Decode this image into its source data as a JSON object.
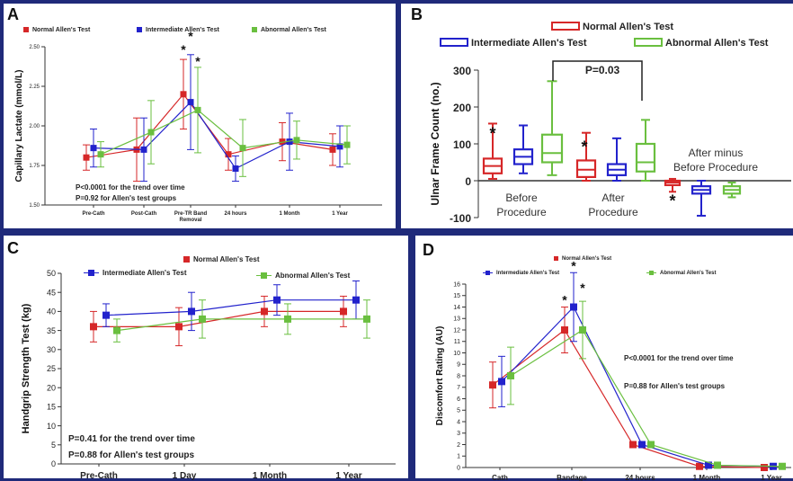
{
  "colors": {
    "normal": "#d62728",
    "intermediate": "#2222cc",
    "abnormal": "#6abf3f",
    "frame": "#1f2a7a"
  },
  "legend": {
    "normal": "Normal Allen's Test",
    "intermediate": "Intermediate Allen's Test",
    "abnormal": "Abnormal Allen's Test"
  },
  "chart_data": [
    {
      "panel": "A",
      "type": "line",
      "categories": [
        "Pre-Cath",
        "Post-Cath",
        "Pre-TR Band Removal",
        "24 hours",
        "1 Month",
        "1 Year"
      ],
      "ylabel": "Capillary Lactate (mmol/L)",
      "xlabel": "",
      "ylim": [
        1.5,
        2.5
      ],
      "yticks": [
        "1.50",
        "1.75",
        "2.00",
        "2.25",
        "2.50"
      ],
      "series": [
        {
          "name": "Normal Allen's Test",
          "values": [
            1.8,
            1.85,
            2.2,
            1.82,
            1.9,
            1.85
          ],
          "err": [
            0.08,
            0.2,
            0.22,
            0.1,
            0.12,
            0.1
          ]
        },
        {
          "name": "Intermediate Allen's Test",
          "values": [
            1.86,
            1.85,
            2.15,
            1.73,
            1.9,
            1.87
          ],
          "err": [
            0.12,
            0.2,
            0.3,
            0.08,
            0.18,
            0.13
          ]
        },
        {
          "name": "Abnormal Allen's Test",
          "values": [
            1.82,
            1.96,
            2.1,
            1.86,
            1.91,
            1.88
          ],
          "err": [
            0.08,
            0.2,
            0.27,
            0.18,
            0.12,
            0.12
          ]
        }
      ],
      "stars": [
        "*",
        "*",
        "*"
      ],
      "notes": [
        "P<0.0001 for the trend over time",
        "P=0.92 for Allen's test groups"
      ]
    },
    {
      "panel": "B",
      "type": "box",
      "ylabel": "Ulnar Frame Count (no.)",
      "ylim": [
        -100,
        300
      ],
      "yticks": [
        "-100",
        "0",
        "100",
        "200",
        "300"
      ],
      "group_labels": [
        "Before Procedure",
        "After Procedure",
        "After minus Before Procedure"
      ],
      "boxes": [
        {
          "series": "normal",
          "min": 5,
          "q1": 20,
          "med": 40,
          "q3": 60,
          "max": 155
        },
        {
          "series": "intermediate",
          "min": 20,
          "q1": 45,
          "med": 65,
          "q3": 85,
          "max": 150
        },
        {
          "series": "abnormal",
          "min": 15,
          "q1": 50,
          "med": 75,
          "q3": 125,
          "max": 270
        },
        {
          "series": "normal",
          "min": 0,
          "q1": 10,
          "med": 30,
          "q3": 55,
          "max": 130
        },
        {
          "series": "intermediate",
          "min": 0,
          "q1": 15,
          "med": 30,
          "q3": 45,
          "max": 115
        },
        {
          "series": "abnormal",
          "min": 0,
          "q1": 25,
          "med": 50,
          "q3": 100,
          "max": 165
        },
        {
          "series": "normal",
          "min": -30,
          "q1": -12,
          "med": -5,
          "q3": 0,
          "max": 5
        },
        {
          "series": "intermediate",
          "min": -95,
          "q1": -35,
          "med": -25,
          "q3": -15,
          "max": 0
        },
        {
          "series": "abnormal",
          "min": -45,
          "q1": -35,
          "med": -25,
          "q3": -15,
          "max": -5
        }
      ],
      "stars": [
        "*",
        "*",
        "*"
      ],
      "pvalue": "P=0.03"
    },
    {
      "panel": "C",
      "type": "line",
      "categories": [
        "Pre-Cath",
        "1 Day",
        "1 Month",
        "1 Year"
      ],
      "ylabel": "Handgrip Strength Test (kg)",
      "ylim": [
        0,
        50
      ],
      "yticks": [
        "0",
        "5",
        "10",
        "15",
        "20",
        "25",
        "30",
        "35",
        "40",
        "45",
        "50"
      ],
      "series": [
        {
          "name": "Normal Allen's Test",
          "values": [
            36,
            36,
            40,
            40
          ],
          "err": [
            4,
            5,
            4,
            4
          ]
        },
        {
          "name": "Intermediate Allen's Test",
          "values": [
            39,
            40,
            43,
            43
          ],
          "err": [
            3,
            5,
            4,
            5
          ]
        },
        {
          "name": "Abnormal Allen's Test",
          "values": [
            35,
            38,
            38,
            38
          ],
          "err": [
            3,
            5,
            4,
            5
          ]
        }
      ],
      "notes": [
        "P=0.41 for the trend over time",
        "P=0.88 for Allen's test groups"
      ]
    },
    {
      "panel": "D",
      "type": "line",
      "categories": [
        "Cath",
        "Bandage",
        "24 hours",
        "1 Month",
        "1 Year"
      ],
      "ylabel": "Discomfort Rating (AU)",
      "ylim": [
        0,
        16
      ],
      "yticks": [
        "0",
        "1",
        "2",
        "3",
        "4",
        "5",
        "6",
        "7",
        "8",
        "9",
        "10",
        "11",
        "12",
        "13",
        "14",
        "15",
        "16"
      ],
      "series": [
        {
          "name": "Normal Allen's Test",
          "values": [
            7.2,
            12,
            2,
            0.1,
            0.0
          ],
          "err": [
            2.0,
            2.0,
            0,
            0,
            0
          ]
        },
        {
          "name": "Intermediate Allen's Test",
          "values": [
            7.5,
            14,
            2,
            0.2,
            0.1
          ],
          "err": [
            2.2,
            3.0,
            0,
            0,
            0
          ]
        },
        {
          "name": "Abnormal Allen's Test",
          "values": [
            8.0,
            12,
            2,
            0.2,
            0.1
          ],
          "err": [
            2.5,
            2.5,
            0,
            0,
            0
          ]
        }
      ],
      "stars": [
        "*",
        "*",
        "*"
      ],
      "notes": [
        "P<0.0001 for the trend over time",
        "P=0.88 for Allen's test groups"
      ]
    }
  ]
}
